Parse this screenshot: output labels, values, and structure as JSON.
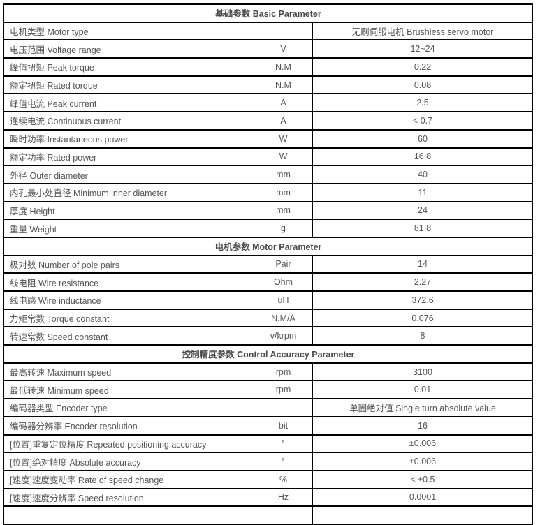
{
  "page": {
    "background_color": "#ffffff",
    "text_color": "#555555",
    "border_color": "#000000"
  },
  "table": {
    "sections": [
      {
        "header": "基础参数 Basic Parameter",
        "rows": [
          {
            "label": "电机类型 Motor type",
            "unit": "",
            "value": "无刷伺服电机 Brushless servo motor"
          },
          {
            "label": "电压范围 Voltage range",
            "unit": "V",
            "value": "12~24"
          },
          {
            "label": "峰值扭矩 Peak torque",
            "unit": "N.M",
            "value": "0.22"
          },
          {
            "label": "额定扭矩 Rated torque",
            "unit": "N.M",
            "value": "0.08"
          },
          {
            "label": "峰值电流 Peak current",
            "unit": "A",
            "value": "2.5"
          },
          {
            "label": "连续电流 Continuous current",
            "unit": "A",
            "value": "< 0.7"
          },
          {
            "label": "瞬时功率 Instantaneous power",
            "unit": "W",
            "value": "60"
          },
          {
            "label": "额定功率 Rated power",
            "unit": "W",
            "value": "16.8"
          },
          {
            "label": "外径 Outer diameter",
            "unit": "mm",
            "value": "40"
          },
          {
            "label": "内孔最小处直径 Minimum inner diameter",
            "unit": "mm",
            "value": "11"
          },
          {
            "label": "厚度 Height",
            "unit": "mm",
            "value": "24"
          },
          {
            "label": "重量 Weight",
            "unit": "g",
            "value": "81.8"
          }
        ]
      },
      {
        "header": "电机参数 Motor Parameter",
        "rows": [
          {
            "label": "极对数 Number of pole pairs",
            "unit": "Pair",
            "value": "14"
          },
          {
            "label": "线电阻 Wire resistance",
            "unit": "Ohm",
            "value": "2.27"
          },
          {
            "label": "线电感 Wire inductance",
            "unit": "uH",
            "value": "372.6"
          },
          {
            "label": "力矩常数 Torque constant",
            "unit": "N.M/A",
            "value": "0.076"
          },
          {
            "label": "转速常数 Speed constant",
            "unit": "v/krpm",
            "value": "8"
          }
        ]
      },
      {
        "header": "控制精度参数 Control Accuracy Parameter",
        "rows": [
          {
            "label": "最高转速 Maximum speed",
            "unit": "rpm",
            "value": "3100"
          },
          {
            "label": "最低转速 Minimum speed",
            "unit": "rpm",
            "value": "0.01"
          },
          {
            "label": "编码器类型 Encoder type",
            "unit": "",
            "value": "单圈绝对值 Single turn absolute value"
          },
          {
            "label": "编码器分辨率 Encoder resolution",
            "unit": "bit",
            "value": "16"
          },
          {
            "label": "[位置]重复定位精度 Repeated positioning accuracy",
            "unit": "°",
            "value": "±0.006"
          },
          {
            "label": "[位置]绝对精度 Absolute accuracy",
            "unit": "°",
            "value": "±0.006"
          },
          {
            "label": "[速度]速度变动率 Rate of speed change",
            "unit": "%",
            "value": "< ±0.5"
          },
          {
            "label": "[速度]速度分辨率 Speed resolution",
            "unit": "Hz",
            "value": "0.0001"
          }
        ]
      }
    ]
  }
}
